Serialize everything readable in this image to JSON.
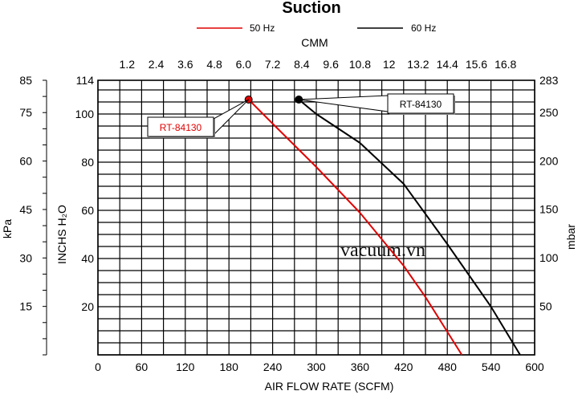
{
  "chart_data": {
    "type": "line",
    "title": "Suction",
    "xlabel": "AIR FLOW RATE (SCFM)",
    "x_top_label": "CMM",
    "ylabel_inner": "INCHS H₂O",
    "ylabel_left": "kPa",
    "ylabel_right": "mbar",
    "xlim": [
      0,
      600
    ],
    "ylim": [
      0,
      114
    ],
    "grid": true,
    "legend_placement": "top",
    "x_ticks": [
      "0",
      "60",
      "120",
      "180",
      "240",
      "300",
      "360",
      "420",
      "480",
      "540",
      "600"
    ],
    "x_top_ticks": [
      "1.2",
      "2.4",
      "3.6",
      "4.8",
      "6.0",
      "7.2",
      "8.4",
      "9.6",
      "10.8",
      "12",
      "13.2",
      "14.4",
      "15.6",
      "16.8"
    ],
    "y_inner_ticks": [
      "114",
      "100",
      "80",
      "60",
      "40",
      "20"
    ],
    "y_left_ticks": [
      "85",
      "75",
      "60",
      "45",
      "30",
      "15"
    ],
    "y_right_ticks": [
      "283",
      "250",
      "200",
      "150",
      "100",
      "50"
    ],
    "series": [
      {
        "name": "50 Hz",
        "color": "#e00000",
        "x": [
          207,
          240,
          300,
          360,
          420,
          450,
          500
        ],
        "y": [
          106,
          96,
          78,
          59,
          37,
          24,
          0
        ]
      },
      {
        "name": "60 Hz",
        "color": "#000000",
        "x": [
          276,
          300,
          360,
          420,
          480,
          540,
          580
        ],
        "y": [
          106,
          100,
          88,
          71,
          46,
          20,
          0
        ]
      }
    ],
    "annotations": [
      {
        "text": "RT-84130",
        "series": "50 Hz",
        "color": "#e00000"
      },
      {
        "text": "RT-84130",
        "series": "60 Hz",
        "color": "#000000"
      }
    ],
    "watermark": "vacuum.vn"
  }
}
